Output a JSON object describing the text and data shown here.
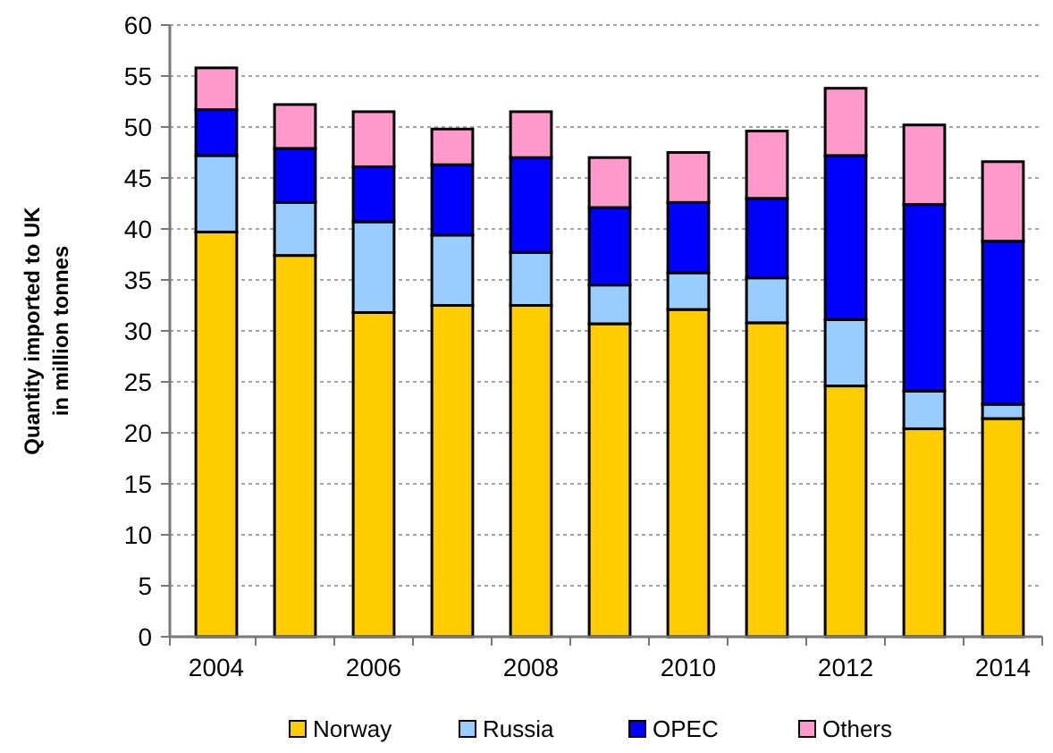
{
  "chart_data": {
    "type": "bar",
    "stacked": true,
    "ylabel": "Quantity imported to UK\nin million tonnes",
    "categories": [
      "2004",
      null,
      "2006",
      null,
      "2008",
      null,
      "2010",
      null,
      "2012",
      null,
      "2014"
    ],
    "series": [
      {
        "name": "Norway",
        "color": "#ffcc00",
        "values": [
          39.7,
          37.4,
          31.8,
          32.5,
          32.5,
          30.7,
          32.1,
          30.8,
          24.6,
          20.4,
          21.4
        ]
      },
      {
        "name": "Russia",
        "color": "#99ccff",
        "values": [
          7.5,
          5.2,
          8.9,
          6.9,
          5.2,
          3.8,
          3.6,
          4.4,
          6.5,
          3.7,
          1.4
        ]
      },
      {
        "name": "OPEC",
        "color": "#0000ff",
        "values": [
          4.5,
          5.3,
          5.4,
          6.9,
          9.3,
          7.6,
          6.9,
          7.8,
          16.1,
          18.3,
          16.0
        ]
      },
      {
        "name": "Others",
        "color": "#ff99cc",
        "values": [
          4.1,
          4.3,
          5.4,
          3.5,
          4.5,
          4.9,
          4.9,
          6.6,
          6.6,
          7.8,
          7.8
        ]
      }
    ],
    "ylim": [
      0,
      60
    ],
    "yticks": [
      0,
      5,
      10,
      15,
      20,
      25,
      30,
      35,
      40,
      45,
      50,
      55,
      60
    ],
    "grid": "y",
    "legend": "bottom"
  }
}
